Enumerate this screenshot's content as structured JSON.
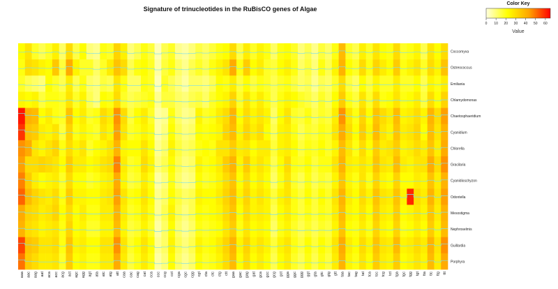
{
  "chart_data": {
    "type": "heatmap",
    "title": "Signature of trinucleotides in the RuBisCO genes of Algae",
    "rows": [
      "Coccomyxa",
      "Ostreococcus",
      "Emiliania",
      "Chlamydomonas",
      "Chaetosphaeridium",
      "Cyanidium",
      "Chlorella",
      "Gracilaria",
      "Cyanidioschyzon",
      "Odontella",
      "Mesostigma",
      "Nephroselmis",
      "Guillardia",
      "Porphyra"
    ],
    "columns": [
      "aaa",
      "aac",
      "aag",
      "aat",
      "aca",
      "acc",
      "acg",
      "act",
      "agc",
      "agg",
      "agt",
      "ata",
      "atc",
      "atg",
      "att",
      "caa",
      "cac",
      "cag",
      "cat",
      "cca",
      "ccc",
      "ccg",
      "cct",
      "cga",
      "cgc",
      "cgg",
      "cgt",
      "cta",
      "ctc",
      "ctg",
      "ctt",
      "gaa",
      "gac",
      "gag",
      "gat",
      "gca",
      "gcc",
      "gcg",
      "gct",
      "gga",
      "ggc",
      "ggg",
      "ggt",
      "gta",
      "gtc",
      "gtg",
      "gtt",
      "taa",
      "tac",
      "tag",
      "tat",
      "tca",
      "tcc",
      "tcg",
      "tct",
      "tga",
      "tgc",
      "tgg",
      "tgt",
      "tta",
      "ttc",
      "ttg",
      "ttt"
    ],
    "color_key": {
      "title": "Color Key",
      "label": "Value",
      "ticks": [
        0,
        10,
        20,
        30,
        40,
        50,
        60
      ],
      "range": [
        0,
        65
      ],
      "colors": [
        "#ffffe0",
        "#ffff00",
        "#ffa500",
        "#ff0000"
      ]
    },
    "trace_color": "#7fe0e8",
    "values": [
      [
        22,
        28,
        18,
        14,
        18,
        25,
        12,
        30,
        15,
        22,
        10,
        8,
        20,
        18,
        32,
        25,
        10,
        14,
        20,
        16,
        4,
        14,
        18,
        8,
        6,
        10,
        15,
        12,
        16,
        20,
        22,
        30,
        15,
        26,
        18,
        24,
        20,
        12,
        20,
        22,
        18,
        10,
        14,
        8,
        16,
        12,
        20,
        38,
        18,
        14,
        25,
        18,
        28,
        22,
        20,
        30,
        18,
        20,
        24,
        14,
        28,
        22,
        30
      ],
      [
        20,
        30,
        28,
        24,
        22,
        35,
        16,
        42,
        24,
        18,
        18,
        12,
        18,
        26,
        36,
        30,
        14,
        20,
        22,
        18,
        6,
        16,
        20,
        12,
        8,
        14,
        18,
        14,
        20,
        24,
        28,
        42,
        20,
        34,
        22,
        26,
        18,
        16,
        22,
        25,
        20,
        12,
        16,
        10,
        20,
        14,
        24,
        40,
        22,
        18,
        30,
        20,
        32,
        26,
        22,
        34,
        20,
        24,
        28,
        18,
        30,
        24,
        36
      ],
      [
        18,
        14,
        12,
        10,
        22,
        18,
        14,
        26,
        14,
        20,
        12,
        10,
        16,
        14,
        28,
        20,
        12,
        12,
        20,
        18,
        4,
        18,
        14,
        10,
        6,
        12,
        12,
        10,
        14,
        22,
        20,
        26,
        16,
        22,
        16,
        20,
        18,
        14,
        18,
        20,
        16,
        12,
        14,
        8,
        14,
        12,
        18,
        30,
        16,
        12,
        22,
        16,
        24,
        18,
        18,
        26,
        18,
        18,
        22,
        14,
        24,
        20,
        26
      ],
      [
        24,
        22,
        24,
        16,
        20,
        20,
        18,
        28,
        18,
        24,
        14,
        10,
        22,
        20,
        30,
        18,
        14,
        16,
        18,
        20,
        8,
        16,
        16,
        12,
        10,
        14,
        16,
        12,
        18,
        22,
        24,
        32,
        18,
        28,
        20,
        26,
        20,
        14,
        20,
        24,
        22,
        18,
        16,
        12,
        18,
        14,
        22,
        34,
        20,
        16,
        28,
        18,
        30,
        20,
        22,
        28,
        20,
        22,
        26,
        16,
        30,
        22,
        32
      ],
      [
        62,
        40,
        38,
        22,
        26,
        20,
        18,
        36,
        22,
        26,
        18,
        20,
        30,
        26,
        46,
        30,
        16,
        22,
        26,
        18,
        6,
        8,
        20,
        12,
        8,
        10,
        24,
        18,
        20,
        26,
        30,
        40,
        22,
        30,
        24,
        28,
        24,
        12,
        22,
        28,
        18,
        16,
        20,
        14,
        18,
        16,
        26,
        46,
        28,
        20,
        32,
        22,
        36,
        30,
        26,
        38,
        24,
        26,
        30,
        24,
        40,
        30,
        44
      ],
      [
        58,
        36,
        34,
        26,
        24,
        28,
        16,
        32,
        20,
        24,
        20,
        18,
        28,
        24,
        44,
        28,
        18,
        20,
        24,
        20,
        6,
        10,
        22,
        14,
        10,
        12,
        22,
        20,
        22,
        24,
        32,
        38,
        24,
        32,
        26,
        30,
        22,
        14,
        24,
        26,
        20,
        14,
        18,
        16,
        20,
        18,
        28,
        42,
        30,
        22,
        34,
        24,
        38,
        28,
        24,
        36,
        26,
        28,
        32,
        22,
        38,
        28,
        40
      ],
      [
        46,
        42,
        28,
        24,
        28,
        32,
        20,
        30,
        24,
        28,
        18,
        22,
        24,
        28,
        40,
        24,
        22,
        22,
        28,
        22,
        8,
        12,
        24,
        16,
        12,
        14,
        20,
        22,
        20,
        28,
        28,
        34,
        26,
        28,
        22,
        26,
        26,
        16,
        24,
        26,
        22,
        16,
        20,
        18,
        22,
        18,
        24,
        38,
        28,
        20,
        30,
        22,
        34,
        26,
        28,
        34,
        24,
        26,
        30,
        26,
        36,
        26,
        42
      ],
      [
        44,
        30,
        30,
        32,
        30,
        28,
        22,
        34,
        26,
        26,
        22,
        24,
        28,
        30,
        48,
        26,
        18,
        20,
        30,
        24,
        10,
        14,
        22,
        14,
        10,
        12,
        24,
        20,
        22,
        26,
        34,
        40,
        24,
        34,
        24,
        28,
        24,
        14,
        22,
        30,
        20,
        18,
        22,
        16,
        20,
        20,
        28,
        40,
        26,
        24,
        28,
        24,
        36,
        28,
        26,
        38,
        26,
        24,
        28,
        28,
        42,
        30,
        46
      ],
      [
        48,
        34,
        26,
        22,
        24,
        26,
        18,
        30,
        22,
        22,
        18,
        20,
        24,
        26,
        42,
        24,
        16,
        18,
        26,
        20,
        6,
        10,
        20,
        12,
        8,
        10,
        22,
        18,
        20,
        24,
        30,
        36,
        22,
        30,
        22,
        26,
        22,
        12,
        20,
        28,
        18,
        14,
        20,
        14,
        18,
        16,
        24,
        36,
        24,
        20,
        28,
        20,
        32,
        24,
        22,
        32,
        22,
        22,
        26,
        24,
        36,
        26,
        40
      ],
      [
        52,
        38,
        32,
        28,
        26,
        30,
        20,
        34,
        24,
        24,
        22,
        22,
        26,
        28,
        44,
        28,
        20,
        22,
        28,
        22,
        8,
        12,
        22,
        16,
        12,
        14,
        24,
        22,
        22,
        26,
        32,
        38,
        24,
        32,
        24,
        28,
        24,
        16,
        24,
        28,
        20,
        16,
        22,
        16,
        22,
        18,
        28,
        40,
        26,
        22,
        30,
        24,
        36,
        28,
        26,
        36,
        24,
        60,
        30,
        26,
        40,
        28,
        44
      ],
      [
        42,
        32,
        30,
        26,
        28,
        32,
        22,
        30,
        22,
        26,
        20,
        20,
        26,
        26,
        40,
        26,
        18,
        20,
        26,
        20,
        8,
        14,
        24,
        14,
        10,
        14,
        22,
        20,
        22,
        24,
        30,
        36,
        22,
        30,
        24,
        26,
        24,
        14,
        22,
        26,
        20,
        16,
        20,
        16,
        20,
        18,
        26,
        38,
        24,
        22,
        28,
        22,
        34,
        26,
        24,
        34,
        22,
        24,
        28,
        24,
        36,
        26,
        40
      ],
      [
        40,
        30,
        28,
        24,
        26,
        28,
        20,
        32,
        22,
        24,
        18,
        18,
        24,
        24,
        38,
        24,
        16,
        18,
        24,
        18,
        6,
        12,
        22,
        12,
        8,
        12,
        20,
        18,
        20,
        22,
        28,
        34,
        20,
        28,
        22,
        24,
        22,
        12,
        20,
        24,
        18,
        14,
        18,
        14,
        18,
        16,
        24,
        36,
        22,
        20,
        26,
        20,
        32,
        24,
        22,
        32,
        20,
        22,
        26,
        22,
        34,
        24,
        38
      ],
      [
        56,
        36,
        34,
        28,
        28,
        30,
        20,
        36,
        24,
        26,
        22,
        22,
        28,
        28,
        46,
        28,
        18,
        22,
        28,
        22,
        8,
        12,
        24,
        14,
        10,
        14,
        24,
        20,
        22,
        26,
        32,
        40,
        24,
        32,
        24,
        28,
        24,
        16,
        24,
        28,
        20,
        16,
        22,
        16,
        22,
        18,
        28,
        42,
        26,
        22,
        30,
        24,
        36,
        28,
        26,
        38,
        24,
        26,
        30,
        26,
        40,
        28,
        46
      ],
      [
        50,
        34,
        30,
        26,
        26,
        28,
        18,
        34,
        22,
        24,
        20,
        20,
        26,
        26,
        42,
        26,
        16,
        20,
        26,
        20,
        6,
        10,
        22,
        12,
        8,
        12,
        22,
        18,
        20,
        24,
        30,
        38,
        22,
        30,
        22,
        26,
        22,
        14,
        22,
        26,
        18,
        14,
        20,
        14,
        20,
        16,
        26,
        40,
        24,
        20,
        28,
        22,
        34,
        26,
        24,
        34,
        22,
        24,
        28,
        24,
        38,
        26,
        42
      ]
    ]
  }
}
